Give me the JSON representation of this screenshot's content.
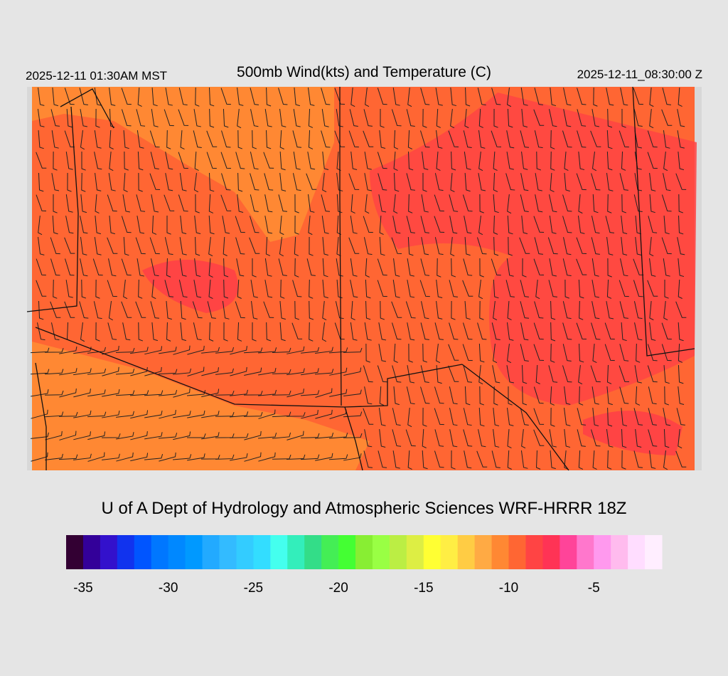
{
  "header": {
    "local_time": "2025-12-11 01:30AM MST",
    "title": "500mb Wind(kts) and Temperature (C)",
    "valid_time": "2025-12-11_08:30:00 Z"
  },
  "credit": "U of A Dept of Hydrology and Atmospheric Sciences WRF-HRRR 18Z",
  "colorbar": {
    "lim": [
      -36,
      -1
    ],
    "ticks": [
      -35,
      -30,
      -25,
      -20,
      -15,
      -10,
      -5
    ],
    "colors": [
      "#330033",
      "#330099",
      "#3311cc",
      "#1133ee",
      "#0055ff",
      "#0077ff",
      "#0088ff",
      "#0099ff",
      "#22aaff",
      "#33bbff",
      "#33ccff",
      "#33ddff",
      "#44ffee",
      "#33eebb",
      "#33dd88",
      "#44ee55",
      "#44ff33",
      "#88ee33",
      "#99ff44",
      "#bbee44",
      "#ddee44",
      "#ffff33",
      "#ffee44",
      "#ffcc44",
      "#ffaa44",
      "#ff8833",
      "#ff6633",
      "#ff4444",
      "#ff3355",
      "#ff4499",
      "#ff77cc",
      "#ff99ee",
      "#ffbbee",
      "#ffddff",
      "#ffeeff"
    ]
  }
}
